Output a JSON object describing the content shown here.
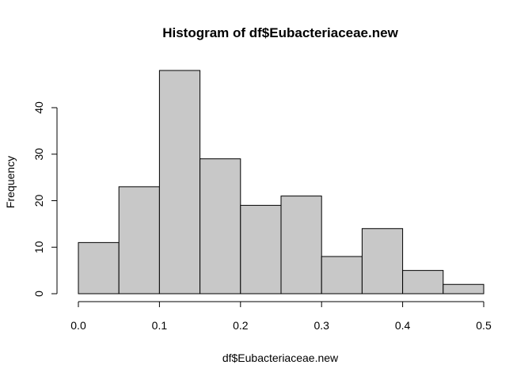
{
  "chart_data": {
    "type": "bar",
    "title": "Histogram of df$Eubacteriaceae.new",
    "xlabel": "df$Eubacteriaceae.new",
    "ylabel": "Frequency",
    "bin_edges": [
      0.0,
      0.05,
      0.1,
      0.15,
      0.2,
      0.25,
      0.3,
      0.35,
      0.4,
      0.45,
      0.5
    ],
    "values": [
      11,
      23,
      48,
      29,
      19,
      21,
      8,
      14,
      5,
      2
    ],
    "xlim": [
      0.0,
      0.5
    ],
    "ylim": [
      0,
      48
    ],
    "x_ticks": [
      0.0,
      0.1,
      0.2,
      0.3,
      0.4,
      0.5
    ],
    "x_tick_labels": [
      "0.0",
      "0.1",
      "0.2",
      "0.3",
      "0.4",
      "0.5"
    ],
    "y_ticks": [
      0,
      10,
      20,
      30,
      40
    ],
    "y_tick_labels": [
      "0",
      "10",
      "20",
      "30",
      "40"
    ],
    "bar_color": "#c8c8c8",
    "grid": false
  }
}
